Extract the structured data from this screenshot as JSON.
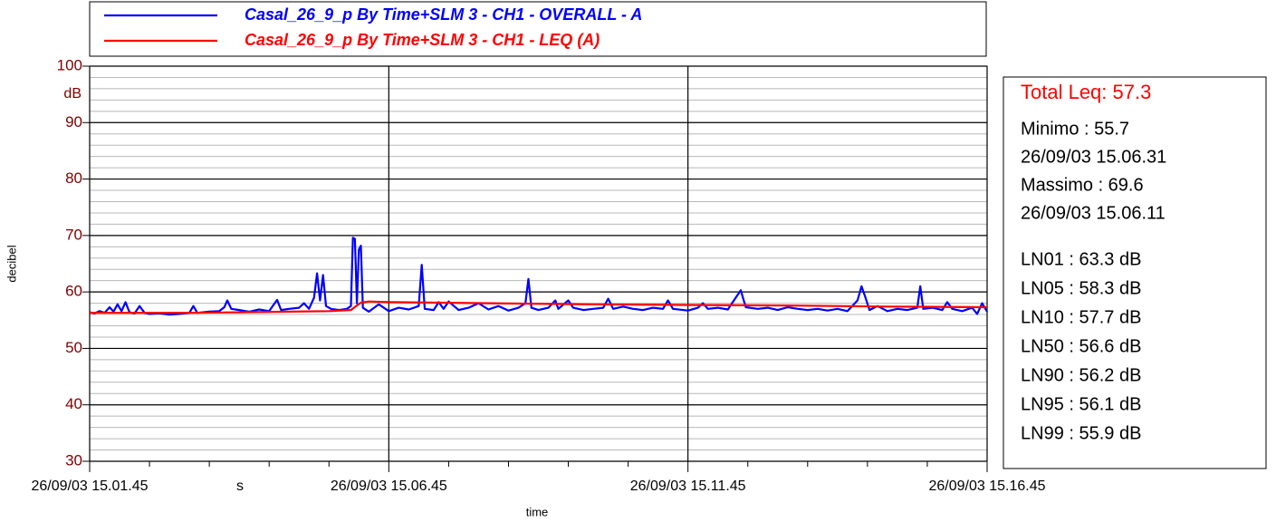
{
  "chart_data": {
    "type": "line",
    "ylabel": "decibel",
    "xlabel": "time",
    "y_unit": "dB",
    "x_unit": "s",
    "xlim": [
      0,
      900
    ],
    "ylim": [
      30,
      100
    ],
    "yticks": [
      30,
      40,
      50,
      60,
      70,
      80,
      90,
      100
    ],
    "yminorticks": [
      32,
      34,
      36,
      38,
      42,
      44,
      46,
      48,
      52,
      54,
      56,
      58,
      62,
      64,
      66,
      68,
      72,
      74,
      76,
      78,
      82,
      84,
      86,
      88,
      92,
      94,
      96,
      98
    ],
    "xticks": [
      {
        "value": 0,
        "label": "26/09/03 15.01.45"
      },
      {
        "value": 300,
        "label": "26/09/03 15.06.45"
      },
      {
        "value": 600,
        "label": "26/09/03 15.11.45"
      },
      {
        "value": 900,
        "label": "26/09/03 15.16.45"
      }
    ],
    "xminorticks": [
      60,
      120,
      180,
      240,
      360,
      420,
      480,
      540,
      660,
      720,
      780,
      840
    ],
    "grid": true,
    "series": [
      {
        "name": "Casal_26_9_p By Time+SLM 3 - CH1 - OVERALL - A",
        "color": "#0000ff",
        "x": [
          0,
          5,
          10,
          15,
          20,
          24,
          28,
          32,
          36,
          40,
          45,
          50,
          55,
          60,
          70,
          80,
          90,
          100,
          104,
          108,
          120,
          130,
          135,
          138,
          142,
          150,
          160,
          170,
          180,
          188,
          192,
          200,
          210,
          215,
          220,
          225,
          228,
          231,
          234,
          237,
          242,
          250,
          258,
          262,
          264,
          266,
          268,
          270,
          272,
          274,
          280,
          290,
          300,
          310,
          320,
          330,
          333,
          336,
          345,
          350,
          355,
          360,
          370,
          380,
          390,
          400,
          410,
          420,
          430,
          437,
          440,
          443,
          450,
          460,
          467,
          470,
          480,
          485,
          495,
          505,
          515,
          520,
          525,
          535,
          545,
          555,
          565,
          575,
          580,
          585,
          600,
          610,
          615,
          620,
          630,
          640,
          648,
          653,
          658,
          670,
          680,
          690,
          700,
          710,
          720,
          730,
          740,
          750,
          760,
          770,
          774,
          778,
          782,
          790,
          800,
          810,
          820,
          830,
          833,
          836,
          845,
          855,
          860,
          865,
          875,
          885,
          890,
          895,
          900
        ],
        "values": [
          56.4,
          56.2,
          56.6,
          56.3,
          57.3,
          56.5,
          57.8,
          56.6,
          58.2,
          56.4,
          56.2,
          57.5,
          56.3,
          56.1,
          56.2,
          56.0,
          56.1,
          56.3,
          57.5,
          56.3,
          56.5,
          56.6,
          57.3,
          58.5,
          57.0,
          56.8,
          56.5,
          56.9,
          56.6,
          58.6,
          56.8,
          57.0,
          57.2,
          58.0,
          57.0,
          59.0,
          63.3,
          58.5,
          63.0,
          57.5,
          57.0,
          56.8,
          57.0,
          57.5,
          69.6,
          69.4,
          58.0,
          67.5,
          68.2,
          57.2,
          56.5,
          57.8,
          56.6,
          57.2,
          56.9,
          57.5,
          64.8,
          57.0,
          56.8,
          58.2,
          57.0,
          58.3,
          56.8,
          57.2,
          58.0,
          56.9,
          57.5,
          56.7,
          57.2,
          58.0,
          62.3,
          57.2,
          56.8,
          57.2,
          58.5,
          57.0,
          58.5,
          57.2,
          56.8,
          57.0,
          57.2,
          58.8,
          57.0,
          57.4,
          57.0,
          56.8,
          57.2,
          57.0,
          58.5,
          57.0,
          56.7,
          57.2,
          58.0,
          57.0,
          57.2,
          56.9,
          59.0,
          60.3,
          57.3,
          57.0,
          57.2,
          56.8,
          57.3,
          57.0,
          56.8,
          57.0,
          56.7,
          57.0,
          56.6,
          58.5,
          61.0,
          59.0,
          56.8,
          57.5,
          56.6,
          57.0,
          56.8,
          57.2,
          61.0,
          57.0,
          57.2,
          56.8,
          58.2,
          57.0,
          56.6,
          57.2,
          56.1,
          58.0,
          56.5
        ]
      },
      {
        "name": "Casal_26_9_p By Time+SLM 3 - CH1 - LEQ (A)",
        "color": "#ff0000",
        "x": [
          0,
          50,
          100,
          150,
          200,
          240,
          262,
          268,
          272,
          280,
          300,
          400,
          500,
          600,
          700,
          800,
          900
        ],
        "values": [
          56.3,
          56.3,
          56.3,
          56.4,
          56.5,
          56.6,
          56.8,
          57.6,
          58.1,
          58.3,
          58.2,
          58.0,
          57.8,
          57.7,
          57.6,
          57.4,
          57.3
        ]
      }
    ],
    "stats": {
      "total": "Total Leq: 57.3",
      "lines": [
        "Minimo : 55.7",
        "26/09/03 15.06.31",
        "Massimo : 69.6",
        "26/09/03 15.06.11"
      ],
      "ln": [
        "LN01 : 63.3 dB",
        "LN05 : 58.3 dB",
        "LN10 : 57.7 dB",
        "LN50 : 56.6 dB",
        "LN90 : 56.2 dB",
        "LN95 : 56.1 dB",
        "LN99 : 55.9 dB"
      ]
    }
  }
}
